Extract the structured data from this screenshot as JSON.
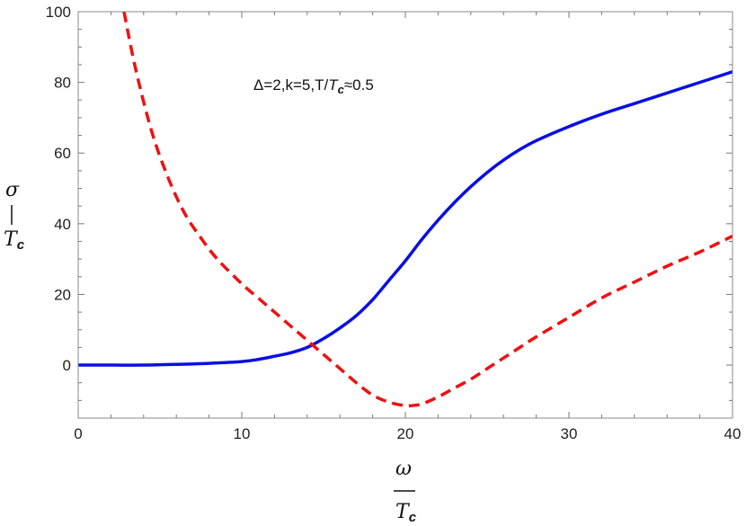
{
  "chart_data": {
    "type": "line",
    "xlim": [
      0,
      40
    ],
    "ylim": [
      -15,
      100
    ],
    "x_ticks": [
      0,
      10,
      20,
      30,
      40
    ],
    "y_ticks": [
      0,
      20,
      40,
      60,
      80,
      100
    ],
    "xlabel": {
      "numerator": "ω",
      "denominator": "T",
      "denominator_sub": "c"
    },
    "ylabel": {
      "numerator": "σ",
      "denominator": "T",
      "denominator_sub": "c"
    },
    "annotation": {
      "prefix": "Δ=2,k=5,T/",
      "var": "T",
      "sub": "c",
      "suffix": "≈0.5"
    },
    "grid": false,
    "series": [
      {
        "style": "solid",
        "color": "#0a10e0",
        "x": [
          0,
          2,
          4,
          6,
          8,
          10,
          11,
          12,
          13,
          14,
          15,
          16,
          17,
          18,
          19,
          20,
          21,
          22,
          23,
          24,
          25,
          26,
          27,
          28,
          30,
          32,
          34,
          36,
          38,
          40
        ],
        "y": [
          0,
          0,
          0,
          0.2,
          0.5,
          1,
          1.6,
          2.5,
          3.5,
          5,
          7.5,
          10.5,
          14,
          18.5,
          24,
          29.5,
          35.5,
          41,
          46,
          50.5,
          54.5,
          58,
          61,
          63.5,
          67.5,
          71,
          74,
          77,
          80,
          83
        ]
      },
      {
        "style": "dashed",
        "color": "#ee1111",
        "x": [
          2.8,
          3.5,
          4.5,
          5.5,
          6.5,
          7.5,
          8.5,
          10,
          11,
          12,
          13,
          14,
          15,
          16,
          17,
          18,
          19,
          20,
          20.3,
          21,
          22,
          23,
          24,
          25,
          26,
          27,
          28,
          30,
          32,
          34,
          36,
          38,
          40
        ],
        "y": [
          100,
          84,
          66,
          53,
          43,
          36,
          30,
          23,
          19,
          15,
          11,
          7,
          3,
          -1,
          -5,
          -8.5,
          -10.5,
          -11.5,
          -11.5,
          -11,
          -9,
          -6.5,
          -4,
          -1,
          2,
          5,
          8,
          13.5,
          19,
          23.5,
          28,
          32,
          36.5
        ]
      }
    ]
  }
}
